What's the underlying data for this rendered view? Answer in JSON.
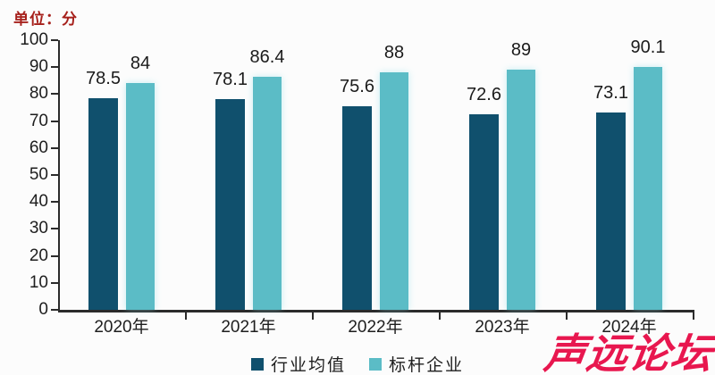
{
  "unit_label": "单位：分",
  "watermark_text": "声远论坛",
  "chart_data": {
    "type": "bar",
    "title": "",
    "unit": "分",
    "categories": [
      "2020年",
      "2021年",
      "2022年",
      "2023年",
      "2024年"
    ],
    "series": [
      {
        "name": "行业均值",
        "color": "#10506d",
        "values": [
          78.5,
          78.1,
          75.6,
          72.6,
          73.1
        ]
      },
      {
        "name": "标杆企业",
        "color": "#5bbcc6",
        "values": [
          84,
          86.4,
          88,
          89,
          90.1
        ]
      }
    ],
    "ylim": [
      0,
      100
    ],
    "y_tick_step": 10,
    "grid": false,
    "legend_position": "bottom",
    "value_labels_shown": true
  },
  "colors": {
    "unit_label": "#a6201b",
    "axis": "#2b2b2b",
    "text": "#1e1e1e",
    "watermark": "#e8174f",
    "background": "#fcfcfc"
  }
}
